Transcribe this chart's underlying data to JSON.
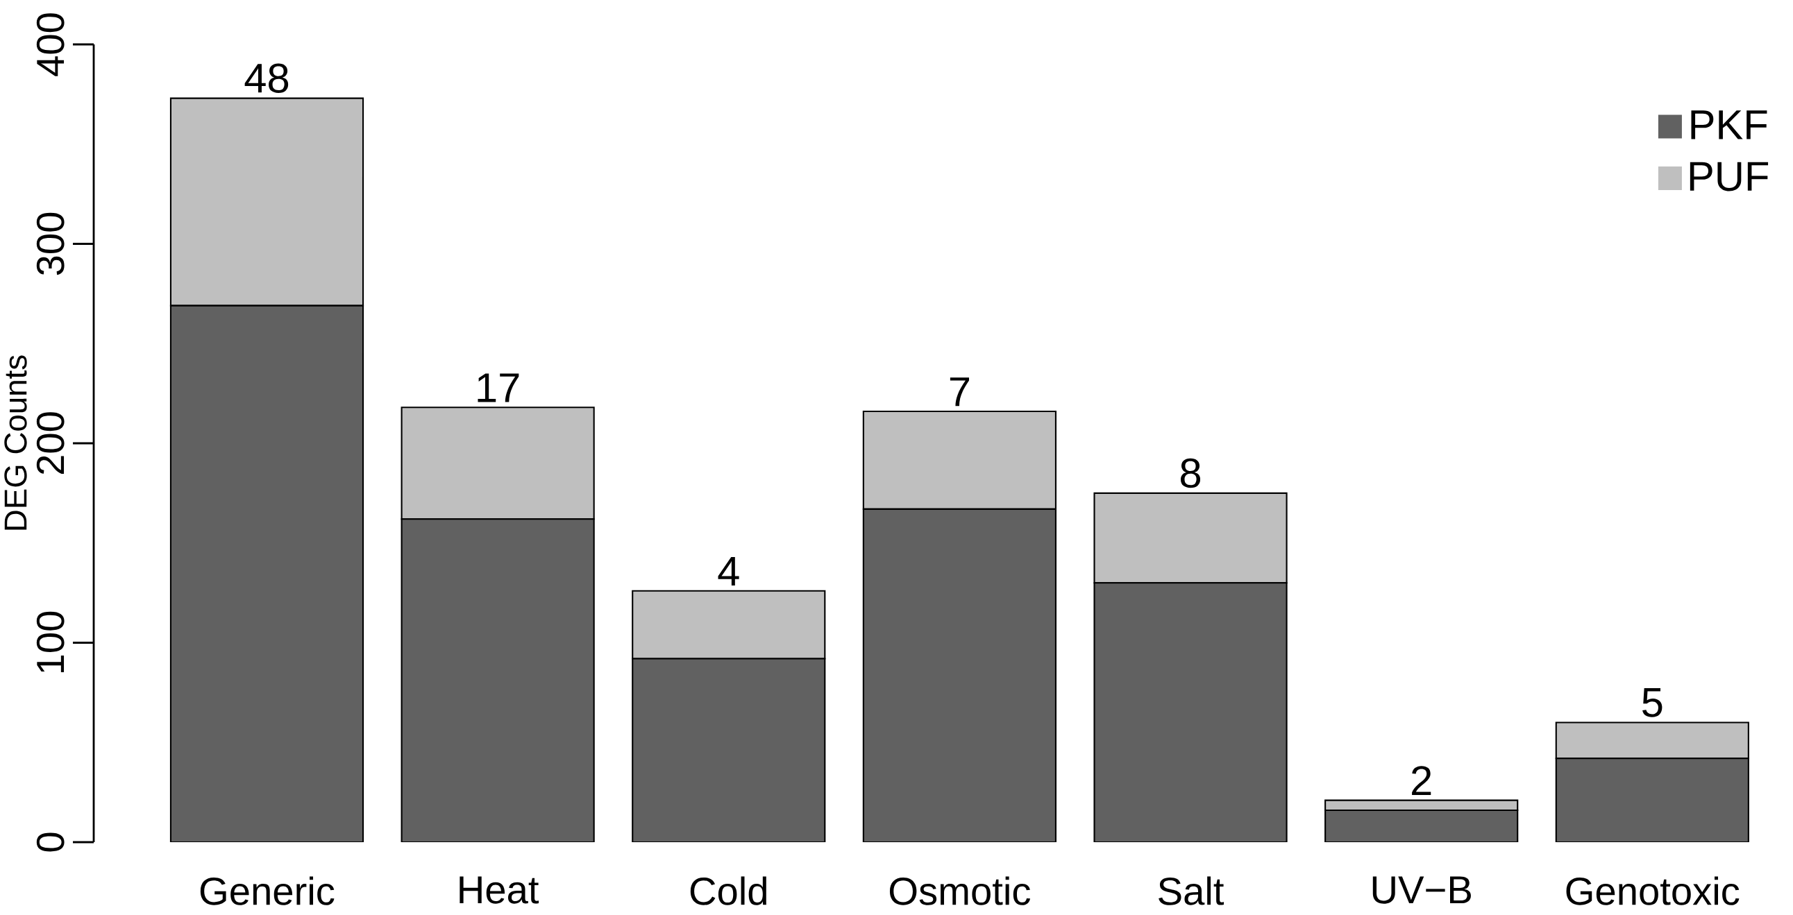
{
  "chart_data": {
    "type": "bar",
    "stacked": true,
    "ylabel": "DEG Counts",
    "categories": [
      "Generic",
      "Heat",
      "Cold",
      "Osmotic",
      "Salt",
      "UV−B",
      "Genotoxic"
    ],
    "series": [
      {
        "name": "PKF",
        "color": "#616161",
        "values": [
          269,
          162,
          92,
          167,
          130,
          16,
          42
        ]
      },
      {
        "name": "PUF",
        "color": "#bfbfbf",
        "values": [
          104,
          56,
          34,
          49,
          45,
          5,
          18
        ]
      }
    ],
    "ylim": [
      0,
      400
    ],
    "yticks": [
      0,
      100,
      200,
      300,
      400
    ],
    "grid": false,
    "legend": "top right",
    "annotations": [
      {
        "text": "48",
        "x": "Generic",
        "y": 373
      },
      {
        "text": "17",
        "x": "Heat",
        "y": 218
      },
      {
        "text": "4",
        "x": "Cold",
        "y": 126
      },
      {
        "text": "7",
        "x": "Osmotic",
        "y": 216
      },
      {
        "text": "8",
        "x": "Salt",
        "y": 175
      },
      {
        "text": "2",
        "x": "UV−B",
        "y": 21
      },
      {
        "text": "5",
        "x": "Genotoxic",
        "y": 60
      }
    ]
  }
}
